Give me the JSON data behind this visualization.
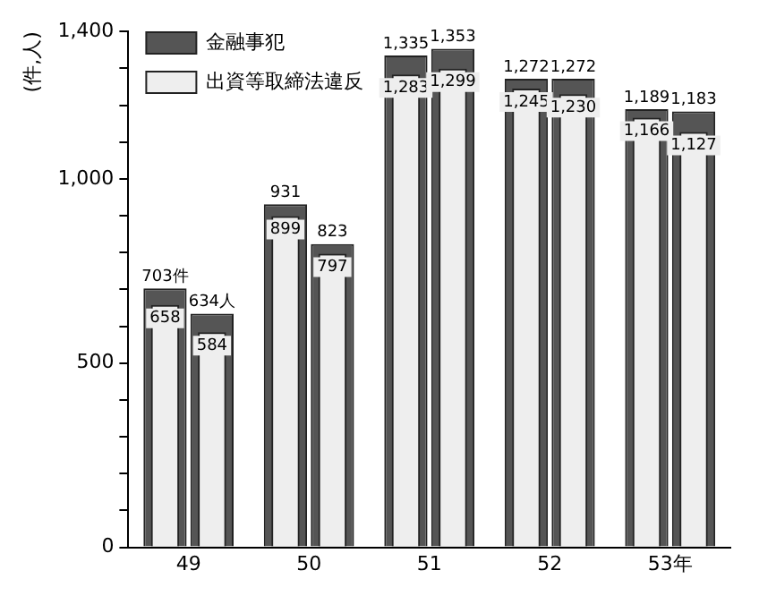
{
  "chart_data": {
    "type": "bar",
    "ylabel": "(件,人)",
    "categories": [
      "49",
      "50",
      "51",
      "52",
      "53年"
    ],
    "series": [
      {
        "name": "金融事犯",
        "color": "#555555",
        "values": [
          703,
          931,
          1335,
          1272,
          1189
        ],
        "value_labels": [
          "703件",
          "931",
          "1,335",
          "1,272",
          "1,189"
        ]
      },
      {
        "color": "#555555",
        "values": [
          634,
          823,
          1353,
          1272,
          1183
        ],
        "value_labels": [
          "634人",
          "823",
          "1,353",
          "1,272",
          "1,183"
        ]
      },
      {
        "name": "出資等取締法違反",
        "color": "#eeeeee",
        "values": [
          658,
          899,
          1283,
          1245,
          1166
        ],
        "value_labels": [
          "658",
          "899",
          "1,283",
          "1,245",
          "1,166"
        ]
      },
      {
        "color": "#eeeeee",
        "values": [
          584,
          797,
          1299,
          1230,
          1127
        ],
        "value_labels": [
          "584",
          "797",
          "1,299",
          "1,230",
          "1,127"
        ]
      }
    ],
    "ylim": [
      0,
      1400
    ],
    "yticks": [
      0,
      {
        "value": 100,
        "label": null
      },
      {
        "value": 200,
        "label": null
      },
      {
        "value": 300,
        "label": null
      },
      {
        "value": 400,
        "label": null
      },
      500,
      {
        "value": 600,
        "label": null
      },
      {
        "value": 700,
        "label": null
      },
      {
        "value": 800,
        "label": null
      },
      {
        "value": 900,
        "label": null
      },
      {
        "value": 1000,
        "label": "1,000"
      },
      {
        "value": 1100,
        "label": null
      },
      {
        "value": 1200,
        "label": null
      },
      {
        "value": 1300,
        "label": null
      },
      {
        "value": 1400,
        "label": "1,400"
      }
    ],
    "legend": "top left",
    "grid": false
  }
}
